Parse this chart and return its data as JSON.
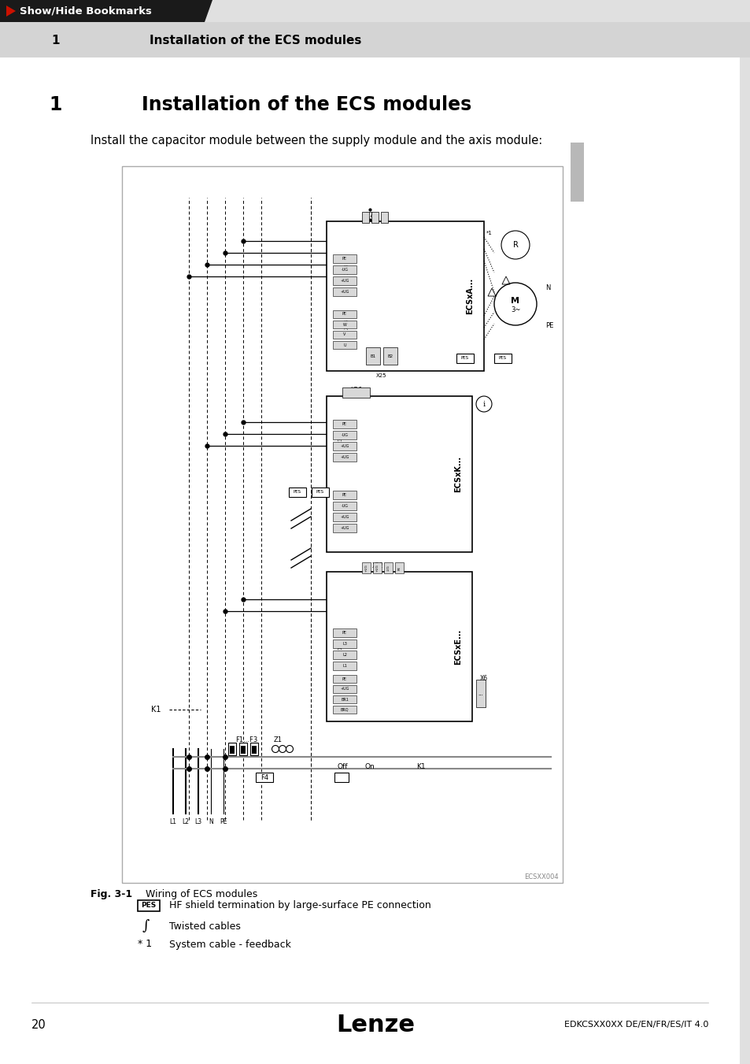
{
  "bg_color": "#e0e0e0",
  "white": "#ffffff",
  "black": "#000000",
  "header_bg": "#1a1a1a",
  "header_text": "#ffffff",
  "header_arrow_color": "#cc1100",
  "title_number": "1",
  "title_text": "Installation of the ECS modules",
  "section_number": "1",
  "section_title": "Installation of the ECS modules",
  "intro_text": "Install the capacitor module between the supply module and the axis module:",
  "fig_label": "Fig. 3-1",
  "fig_desc": "Wiring of ECS modules",
  "legend_pes": "HF shield termination by large-surface PE connection",
  "legend_twist": "Twisted cables",
  "legend_star1": "System cable - feedback",
  "page_num": "20",
  "logo_text": "Lenze",
  "footer_right": "EDKCSXX0XX DE/EN/FR/ES/IT 4.0",
  "diagram_border": "#555555",
  "diagram_bg": "#ffffff",
  "label_ECSxA": "ECSxA...",
  "label_ECSxK": "ECSxK...",
  "label_ECSxE": "ECSxE...",
  "label_ECSXX004": "ECSXX004",
  "gray_tab": "#b8b8b8",
  "light_gray": "#d4d4d4"
}
